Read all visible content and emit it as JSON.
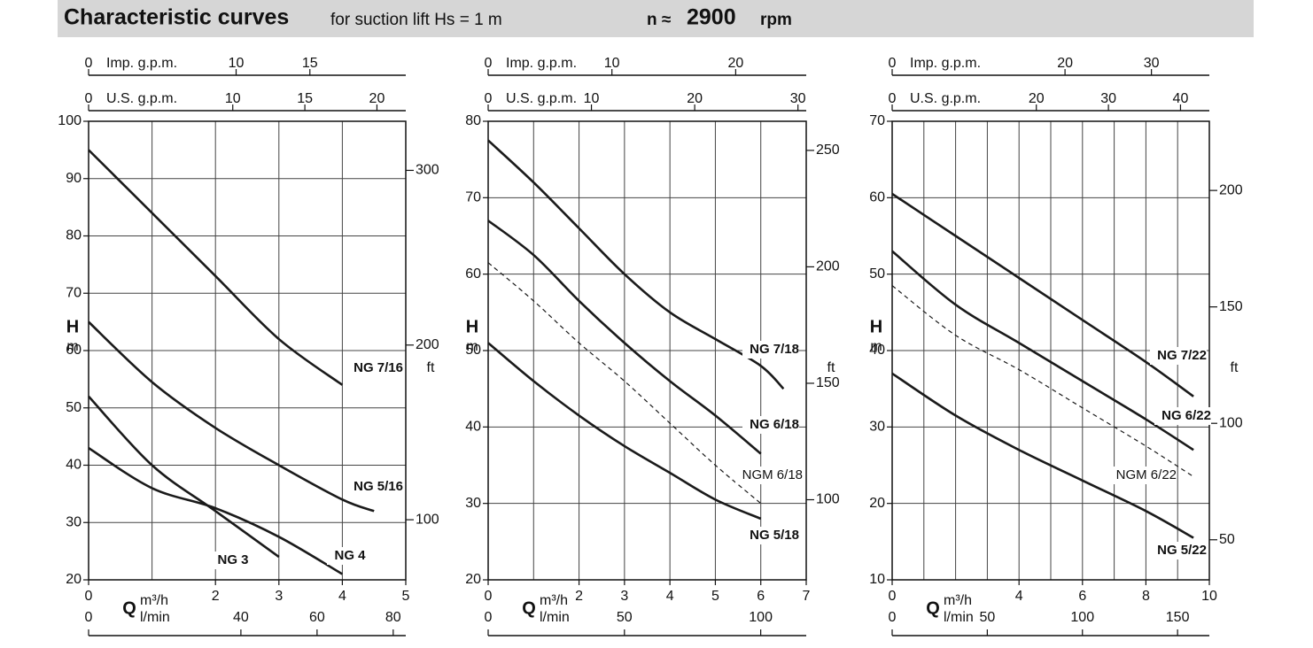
{
  "header": {
    "title": "Characteristic curves",
    "subtitle": "for suction lift Hs = 1 m",
    "speed_prefix": "n ≈",
    "speed": "2900",
    "speed_unit": "rpm"
  },
  "chart_data": [
    {
      "type": "line",
      "y_label": "H",
      "y_unit": "m",
      "x_label": "Q",
      "x_unit": "m³/h",
      "xlim": [
        0,
        5
      ],
      "xticks": [
        0,
        2,
        3,
        4,
        5
      ],
      "xgrid": [
        0,
        1,
        2,
        3,
        4,
        5
      ],
      "ylim": [
        20,
        100
      ],
      "yticks": [
        20,
        30,
        40,
        50,
        60,
        70,
        80,
        90,
        100
      ],
      "y2_label": "ft",
      "y2lim": [
        65.6,
        328.1
      ],
      "y2ticks": [
        100,
        200,
        300
      ],
      "x2_label": "l/min",
      "x2lim": [
        0,
        83.3
      ],
      "x2ticks": [
        0,
        40,
        60,
        80
      ],
      "top_axes": [
        {
          "label": "Imp. g.p.m.",
          "lim": [
            0,
            21.5
          ],
          "ticks": [
            0,
            10,
            15
          ]
        },
        {
          "label": "U.S. g.p.m.",
          "lim": [
            0,
            22
          ],
          "ticks": [
            0,
            10,
            15,
            20
          ]
        }
      ],
      "series": [
        {
          "name": "NG 7/16",
          "color": "#1a1a1a",
          "dashed": false,
          "x": [
            0,
            1,
            2,
            3,
            4
          ],
          "values": [
            95,
            84,
            73,
            62,
            54
          ]
        },
        {
          "name": "NG 5/16",
          "color": "#1a1a1a",
          "dashed": false,
          "x": [
            0,
            1,
            2,
            3,
            4,
            4.5
          ],
          "values": [
            65,
            54.5,
            46.5,
            40,
            34,
            32
          ]
        },
        {
          "name": "NG 3",
          "color": "#1a1a1a",
          "dashed": false,
          "x": [
            0,
            1,
            2,
            3
          ],
          "values": [
            52,
            40,
            32,
            24
          ]
        },
        {
          "name": "NG 4",
          "color": "#1a1a1a",
          "dashed": false,
          "x": [
            0,
            1,
            2,
            3,
            4
          ],
          "values": [
            43,
            36,
            32.5,
            27.5,
            21
          ]
        }
      ]
    },
    {
      "type": "line",
      "y_label": "H",
      "y_unit": "m",
      "x_label": "Q",
      "x_unit": "m³/h",
      "xlim": [
        0,
        7
      ],
      "xticks": [
        0,
        2,
        3,
        4,
        5,
        6,
        7
      ],
      "xgrid": [
        0,
        1,
        2,
        3,
        4,
        5,
        6,
        7
      ],
      "ylim": [
        20,
        80
      ],
      "yticks": [
        20,
        30,
        40,
        50,
        60,
        70,
        80
      ],
      "y2_label": "ft",
      "y2lim": [
        65.6,
        262.5
      ],
      "y2ticks": [
        100,
        150,
        200,
        250
      ],
      "x2_label": "l/min",
      "x2lim": [
        0,
        116.7
      ],
      "x2ticks": [
        0,
        50,
        100
      ],
      "top_axes": [
        {
          "label": "Imp. g.p.m.",
          "lim": [
            0,
            25.7
          ],
          "ticks": [
            0,
            10,
            20
          ]
        },
        {
          "label": "U.S. g.p.m.",
          "lim": [
            0,
            30.8
          ],
          "ticks": [
            0,
            10,
            20,
            30
          ]
        }
      ],
      "series": [
        {
          "name": "NG 7/18",
          "color": "#1a1a1a",
          "dashed": false,
          "x": [
            0,
            1,
            2,
            3,
            4,
            5,
            6,
            6.5
          ],
          "values": [
            77.5,
            72,
            66,
            60,
            55,
            51.5,
            48,
            45
          ]
        },
        {
          "name": "NG 6/18",
          "color": "#1a1a1a",
          "dashed": false,
          "x": [
            0,
            1,
            2,
            3,
            4,
            5,
            6
          ],
          "values": [
            67,
            62.5,
            56.5,
            51,
            46,
            41.5,
            36.5
          ]
        },
        {
          "name": "NGM 6/18",
          "color": "#1a1a1a",
          "dashed": true,
          "x": [
            0,
            1,
            2,
            3,
            4,
            5,
            6
          ],
          "values": [
            61.5,
            56.5,
            51,
            46,
            40.5,
            35,
            30
          ]
        },
        {
          "name": "NG 5/18",
          "color": "#1a1a1a",
          "dashed": false,
          "x": [
            0,
            1,
            2,
            3,
            4,
            5,
            6
          ],
          "values": [
            51,
            46,
            41.5,
            37.5,
            34,
            30.5,
            28
          ]
        }
      ]
    },
    {
      "type": "line",
      "y_label": "H",
      "y_unit": "m",
      "x_label": "Q",
      "x_unit": "m³/h",
      "xlim": [
        0,
        10
      ],
      "xticks": [
        0,
        4,
        6,
        8,
        10
      ],
      "xgrid": [
        0,
        1,
        2,
        3,
        4,
        5,
        6,
        7,
        8,
        9,
        10
      ],
      "ylim": [
        10,
        70
      ],
      "yticks": [
        10,
        20,
        30,
        40,
        50,
        60,
        70
      ],
      "y2_label": "ft",
      "y2lim": [
        32.8,
        229.7
      ],
      "y2ticks": [
        50,
        100,
        150,
        200
      ],
      "x2_label": "l/min",
      "x2lim": [
        0,
        166.7
      ],
      "x2ticks": [
        0,
        50,
        100,
        150
      ],
      "top_axes": [
        {
          "label": "Imp. g.p.m.",
          "lim": [
            0,
            36.7
          ],
          "ticks": [
            0,
            20,
            30
          ]
        },
        {
          "label": "U.S. g.p.m.",
          "lim": [
            0,
            44
          ],
          "ticks": [
            0,
            20,
            30,
            40
          ]
        }
      ],
      "series": [
        {
          "name": "NG 7/22",
          "color": "#1a1a1a",
          "dashed": false,
          "x": [
            0,
            2,
            4,
            6,
            8,
            9.5
          ],
          "values": [
            60.5,
            55,
            49.5,
            44,
            38.5,
            34
          ]
        },
        {
          "name": "NG 6/22",
          "color": "#1a1a1a",
          "dashed": false,
          "x": [
            0,
            2,
            4,
            6,
            8,
            9.5
          ],
          "values": [
            53,
            46,
            41,
            36,
            31,
            27
          ]
        },
        {
          "name": "NGM 6/22",
          "color": "#1a1a1a",
          "dashed": true,
          "x": [
            0,
            2,
            4,
            6,
            8,
            9.5
          ],
          "values": [
            48.5,
            42,
            37.5,
            32.5,
            27.5,
            23.5
          ]
        },
        {
          "name": "NG 5/22",
          "color": "#1a1a1a",
          "dashed": false,
          "x": [
            0,
            2,
            4,
            6,
            8,
            9.5
          ],
          "values": [
            37,
            31.5,
            27,
            23,
            19,
            15.5
          ]
        }
      ]
    }
  ]
}
